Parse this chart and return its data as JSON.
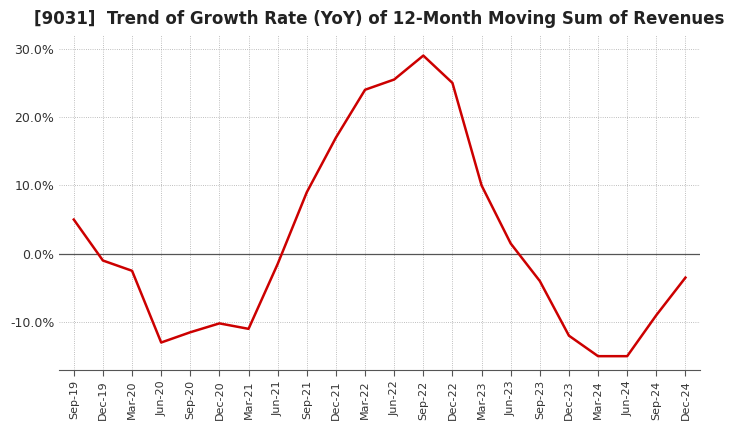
{
  "title": "[9031]  Trend of Growth Rate (YoY) of 12-Month Moving Sum of Revenues",
  "title_fontsize": 12,
  "line_color": "#cc0000",
  "background_color": "#ffffff",
  "grid_color": "#aaaaaa",
  "ylim": [
    -17,
    32
  ],
  "yticks": [
    -10.0,
    0.0,
    10.0,
    20.0,
    30.0
  ],
  "dates": [
    "Sep-19",
    "Dec-19",
    "Mar-20",
    "Jun-20",
    "Sep-20",
    "Dec-20",
    "Mar-21",
    "Jun-21",
    "Sep-21",
    "Dec-21",
    "Mar-22",
    "Jun-22",
    "Sep-22",
    "Dec-22",
    "Mar-23",
    "Jun-23",
    "Sep-23",
    "Dec-23",
    "Mar-24",
    "Jun-24",
    "Sep-24",
    "Dec-24"
  ],
  "values": [
    5.0,
    -1.0,
    -2.5,
    -13.0,
    -11.5,
    -10.2,
    -11.0,
    -1.5,
    9.0,
    17.0,
    24.0,
    25.5,
    29.0,
    25.0,
    10.0,
    1.5,
    -4.0,
    -12.0,
    -15.0,
    -15.0,
    -9.0,
    -3.5
  ]
}
